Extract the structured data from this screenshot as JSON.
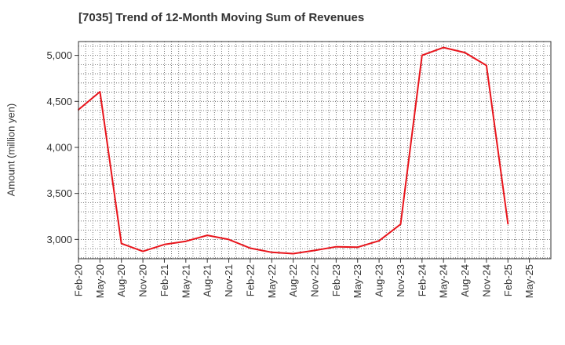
{
  "chart_data": {
    "type": "line",
    "title": "[7035]  Trend of 12-Month Moving Sum of Revenues",
    "xlabel": "",
    "ylabel": "Amount (million yen)",
    "ylim": [
      2790,
      5150
    ],
    "yticks": [
      3000,
      3500,
      4000,
      4500,
      5000
    ],
    "ytick_labels": [
      "3,000",
      "3,500",
      "4,000",
      "4,500",
      "5,000"
    ],
    "categories": [
      "Feb-20",
      "May-20",
      "Aug-20",
      "Nov-20",
      "Feb-21",
      "May-21",
      "Aug-21",
      "Nov-21",
      "Feb-22",
      "May-22",
      "Aug-22",
      "Nov-22",
      "Feb-23",
      "May-23",
      "Aug-23",
      "Nov-23",
      "Feb-24",
      "May-24",
      "Aug-24",
      "Nov-24",
      "Feb-25",
      "May-25"
    ],
    "series": [
      {
        "color": "#e8141b",
        "values": [
          4410,
          4605,
          2955,
          2870,
          2945,
          2980,
          3045,
          3000,
          2905,
          2860,
          2845,
          2880,
          2920,
          2915,
          2985,
          3165,
          5000,
          5085,
          5030,
          4890,
          3170,
          null
        ]
      }
    ],
    "grid": true,
    "legend": "none"
  }
}
